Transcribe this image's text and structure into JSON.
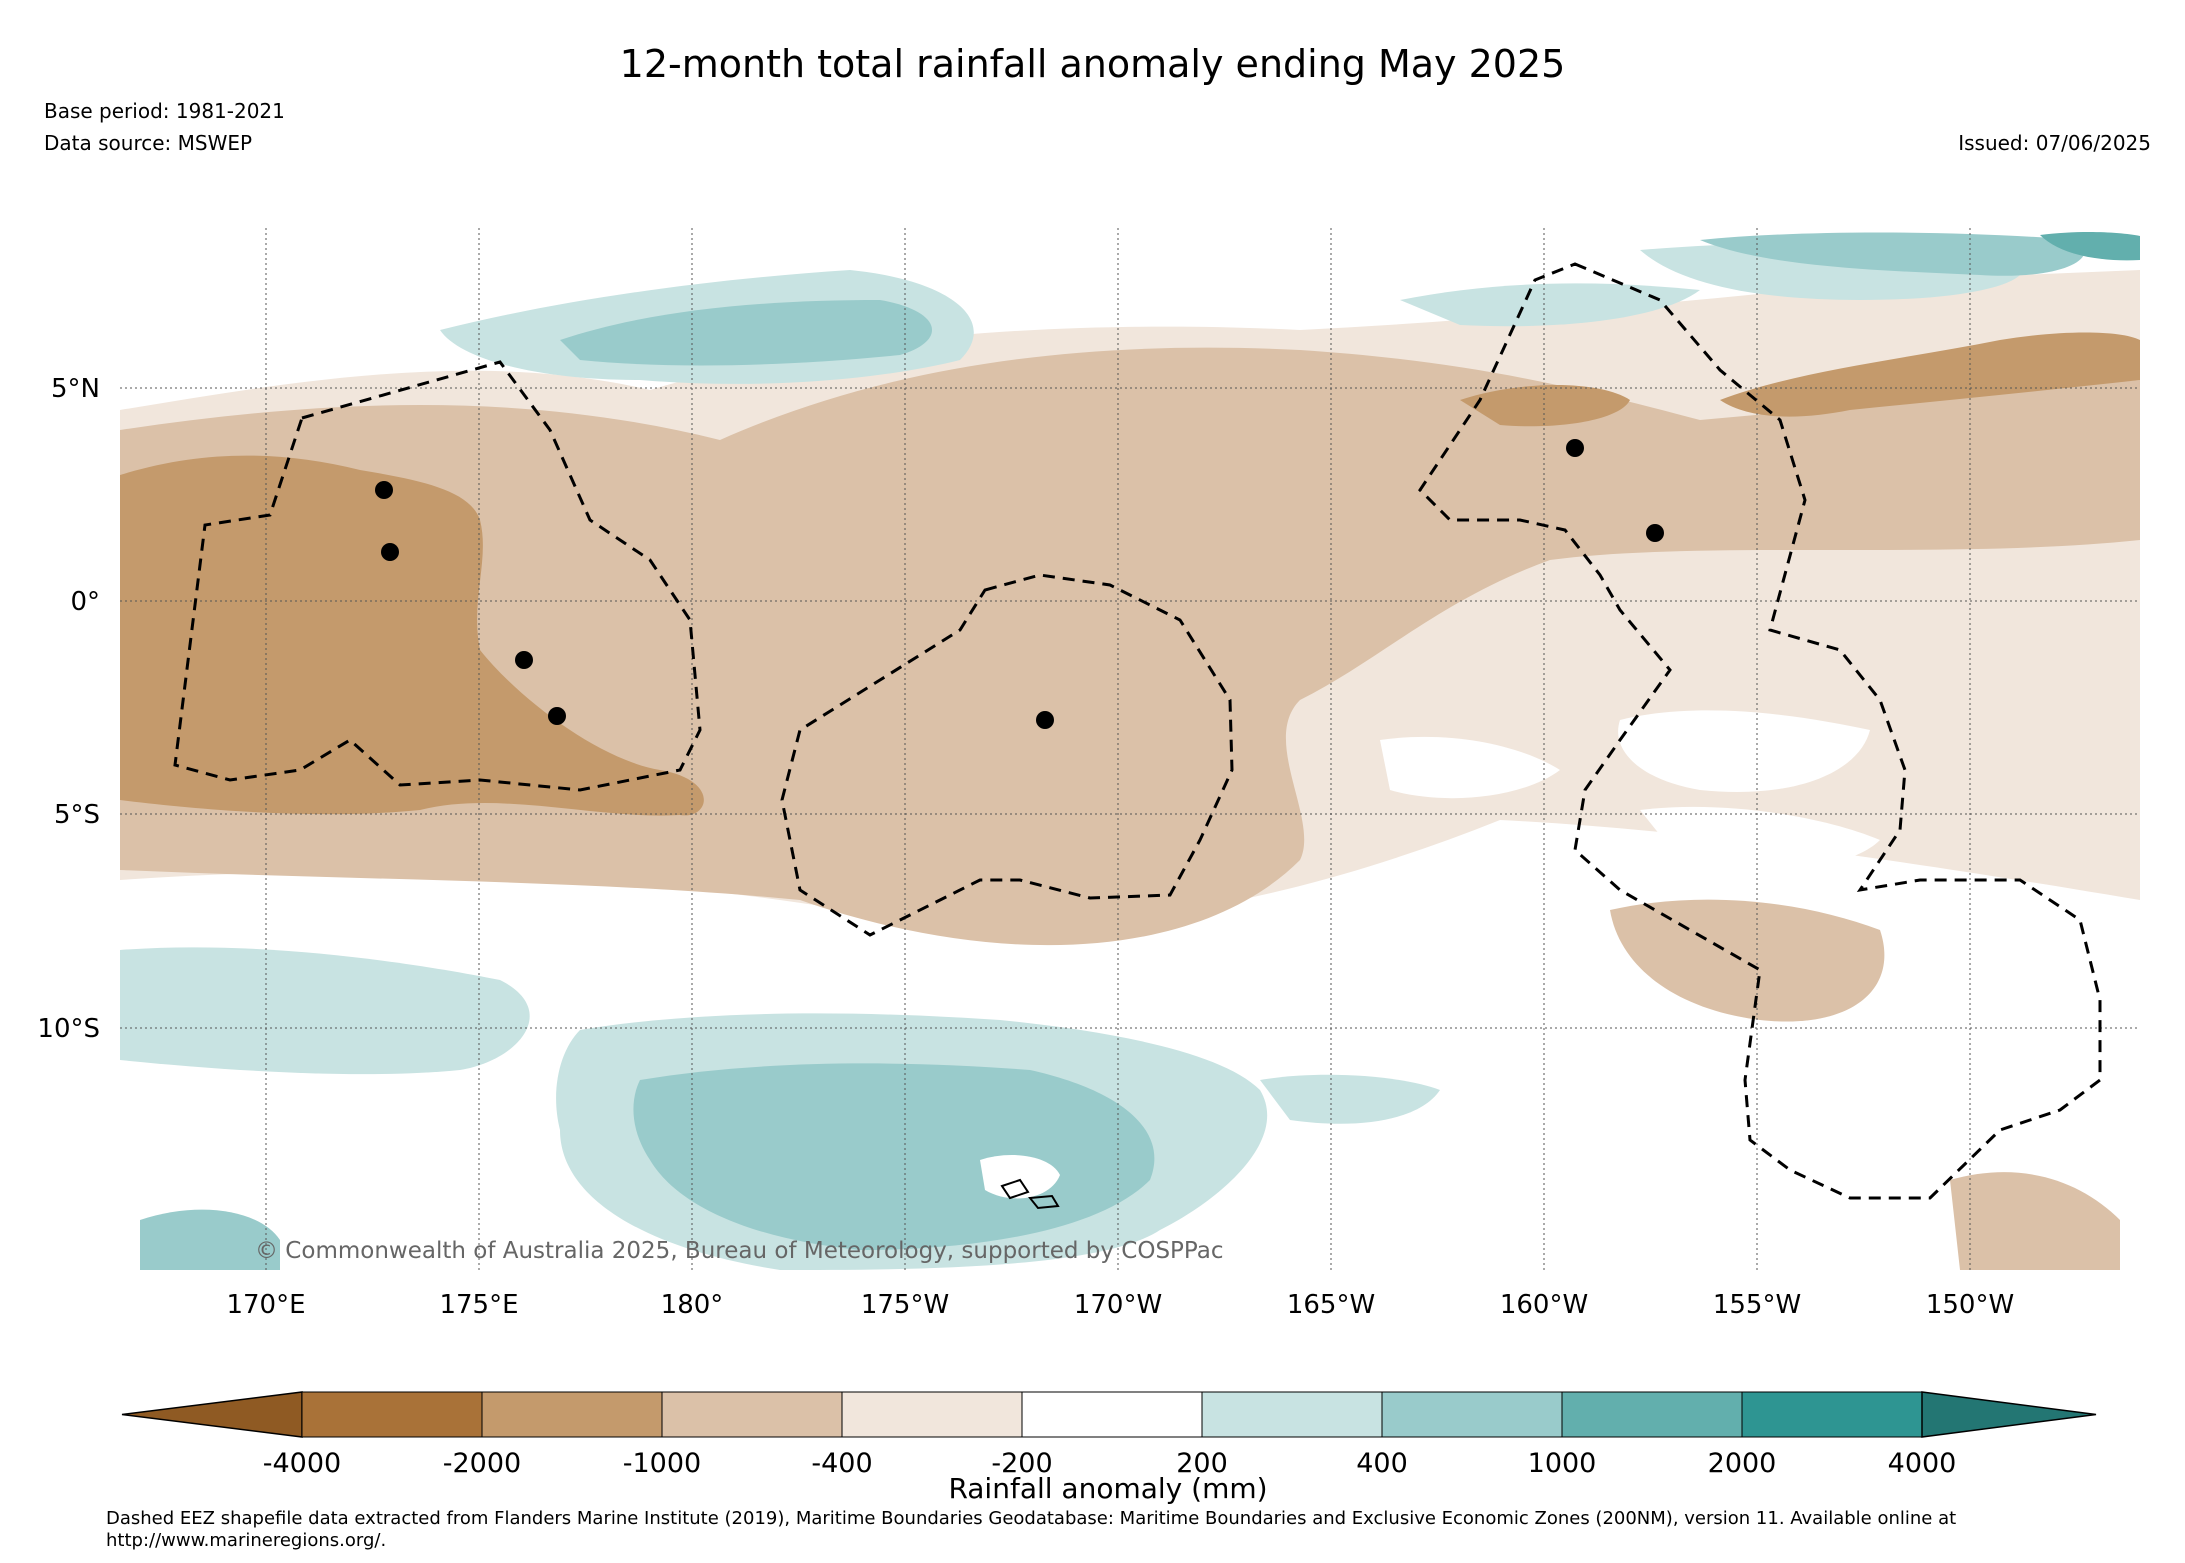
{
  "title": "12-month total rainfall anomaly ending May 2025",
  "base_period": "Base period: 1981-2021",
  "data_source": "Data source: MSWEP",
  "issued": "Issued: 07/06/2025",
  "copyright": "© Commonwealth of Australia 2025, Bureau of Meteorology, supported by COSPPac",
  "map": {
    "lon_labels": [
      "170°E",
      "175°E",
      "180°",
      "175°W",
      "170°W",
      "165°W",
      "160°W",
      "155°W",
      "150°W"
    ],
    "lat_labels": [
      "5°N",
      "0°",
      "5°S",
      "10°S"
    ],
    "gridlines": "dotted"
  },
  "colorbar": {
    "ticks": [
      "-4000",
      "-2000",
      "-1000",
      "-400",
      "-200",
      "200",
      "400",
      "1000",
      "2000",
      "4000"
    ],
    "colors": [
      "#8f5a23",
      "#a97238",
      "#c49a6c",
      "#dbc1a8",
      "#f1e6dc",
      "#ffffff",
      "#c8e3e2",
      "#99cbcb",
      "#62afad",
      "#2e9592",
      "#237673"
    ],
    "label": "Rainfall anomaly (mm)"
  },
  "footnote": "Dashed EEZ shapefile data extracted from Flanders Marine Institute (2019), Maritime Boundaries Geodatabase: Maritime Boundaries and Exclusive Economic Zones (200NM), version 11. Available online at http://www.marineregions.org/."
}
